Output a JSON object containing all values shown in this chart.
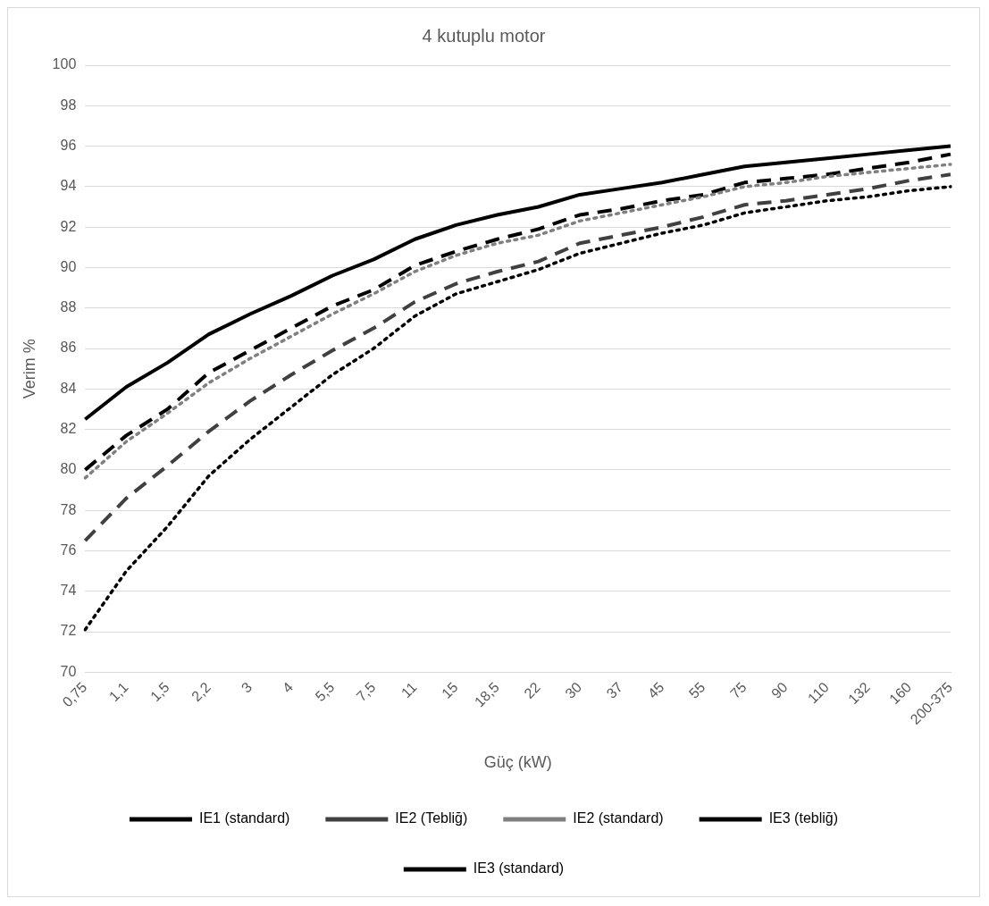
{
  "chart_data": {
    "type": "line",
    "title": "4 kutuplu motor",
    "xlabel": "Güç (kW)",
    "ylabel": "Verim %",
    "categories": [
      "0,75",
      "1,1",
      "1,5",
      "2,2",
      "3",
      "4",
      "5,5",
      "7,5",
      "11",
      "15",
      "18,5",
      "22",
      "30",
      "37",
      "45",
      "55",
      "75",
      "90",
      "110",
      "132",
      "160",
      "200-375"
    ],
    "series": [
      {
        "name": "IE1 (standard)",
        "color": "#000000",
        "line_style": "dotted",
        "values": [
          72.1,
          75.0,
          77.2,
          79.7,
          81.5,
          83.1,
          84.7,
          86.0,
          87.6,
          88.7,
          89.3,
          89.9,
          90.7,
          91.2,
          91.7,
          92.1,
          92.7,
          93.0,
          93.3,
          93.5,
          93.8,
          94.0
        ]
      },
      {
        "name": "IE2 (Tebliğ)",
        "color": "#404040",
        "line_style": "dashed",
        "values": [
          76.5,
          78.6,
          80.2,
          81.9,
          83.4,
          84.7,
          85.9,
          87.0,
          88.3,
          89.2,
          89.8,
          90.3,
          91.2,
          91.6,
          92.0,
          92.5,
          93.1,
          93.3,
          93.6,
          93.9,
          94.3,
          94.6
        ]
      },
      {
        "name": "IE2 (standard)",
        "color": "#808080",
        "line_style": "dotted",
        "values": [
          79.6,
          81.4,
          82.8,
          84.3,
          85.5,
          86.6,
          87.7,
          88.7,
          89.8,
          90.6,
          91.2,
          91.6,
          92.3,
          92.7,
          93.1,
          93.5,
          94.0,
          94.2,
          94.5,
          94.7,
          94.9,
          95.1
        ]
      },
      {
        "name": "IE3 (tebliğ)",
        "color": "#000000",
        "line_style": "dashed",
        "values": [
          80.0,
          81.7,
          83.0,
          84.8,
          85.9,
          87.0,
          88.1,
          88.9,
          90.1,
          90.8,
          91.4,
          91.9,
          92.6,
          92.9,
          93.3,
          93.6,
          94.2,
          94.4,
          94.6,
          94.9,
          95.2,
          95.6
        ]
      },
      {
        "name": "IE3 (standard)",
        "color": "#000000",
        "line_style": "solid",
        "values": [
          82.5,
          84.1,
          85.3,
          86.7,
          87.7,
          88.6,
          89.6,
          90.4,
          91.4,
          92.1,
          92.6,
          93.0,
          93.6,
          93.9,
          94.2,
          94.6,
          95.0,
          95.2,
          95.4,
          95.6,
          95.8,
          96.0
        ]
      }
    ],
    "ylim": [
      70,
      100
    ],
    "yticks": [
      70,
      72,
      74,
      76,
      78,
      80,
      82,
      84,
      86,
      88,
      90,
      92,
      94,
      96,
      98,
      100
    ],
    "grid": "y",
    "legend": "bottom",
    "marker": "none"
  }
}
